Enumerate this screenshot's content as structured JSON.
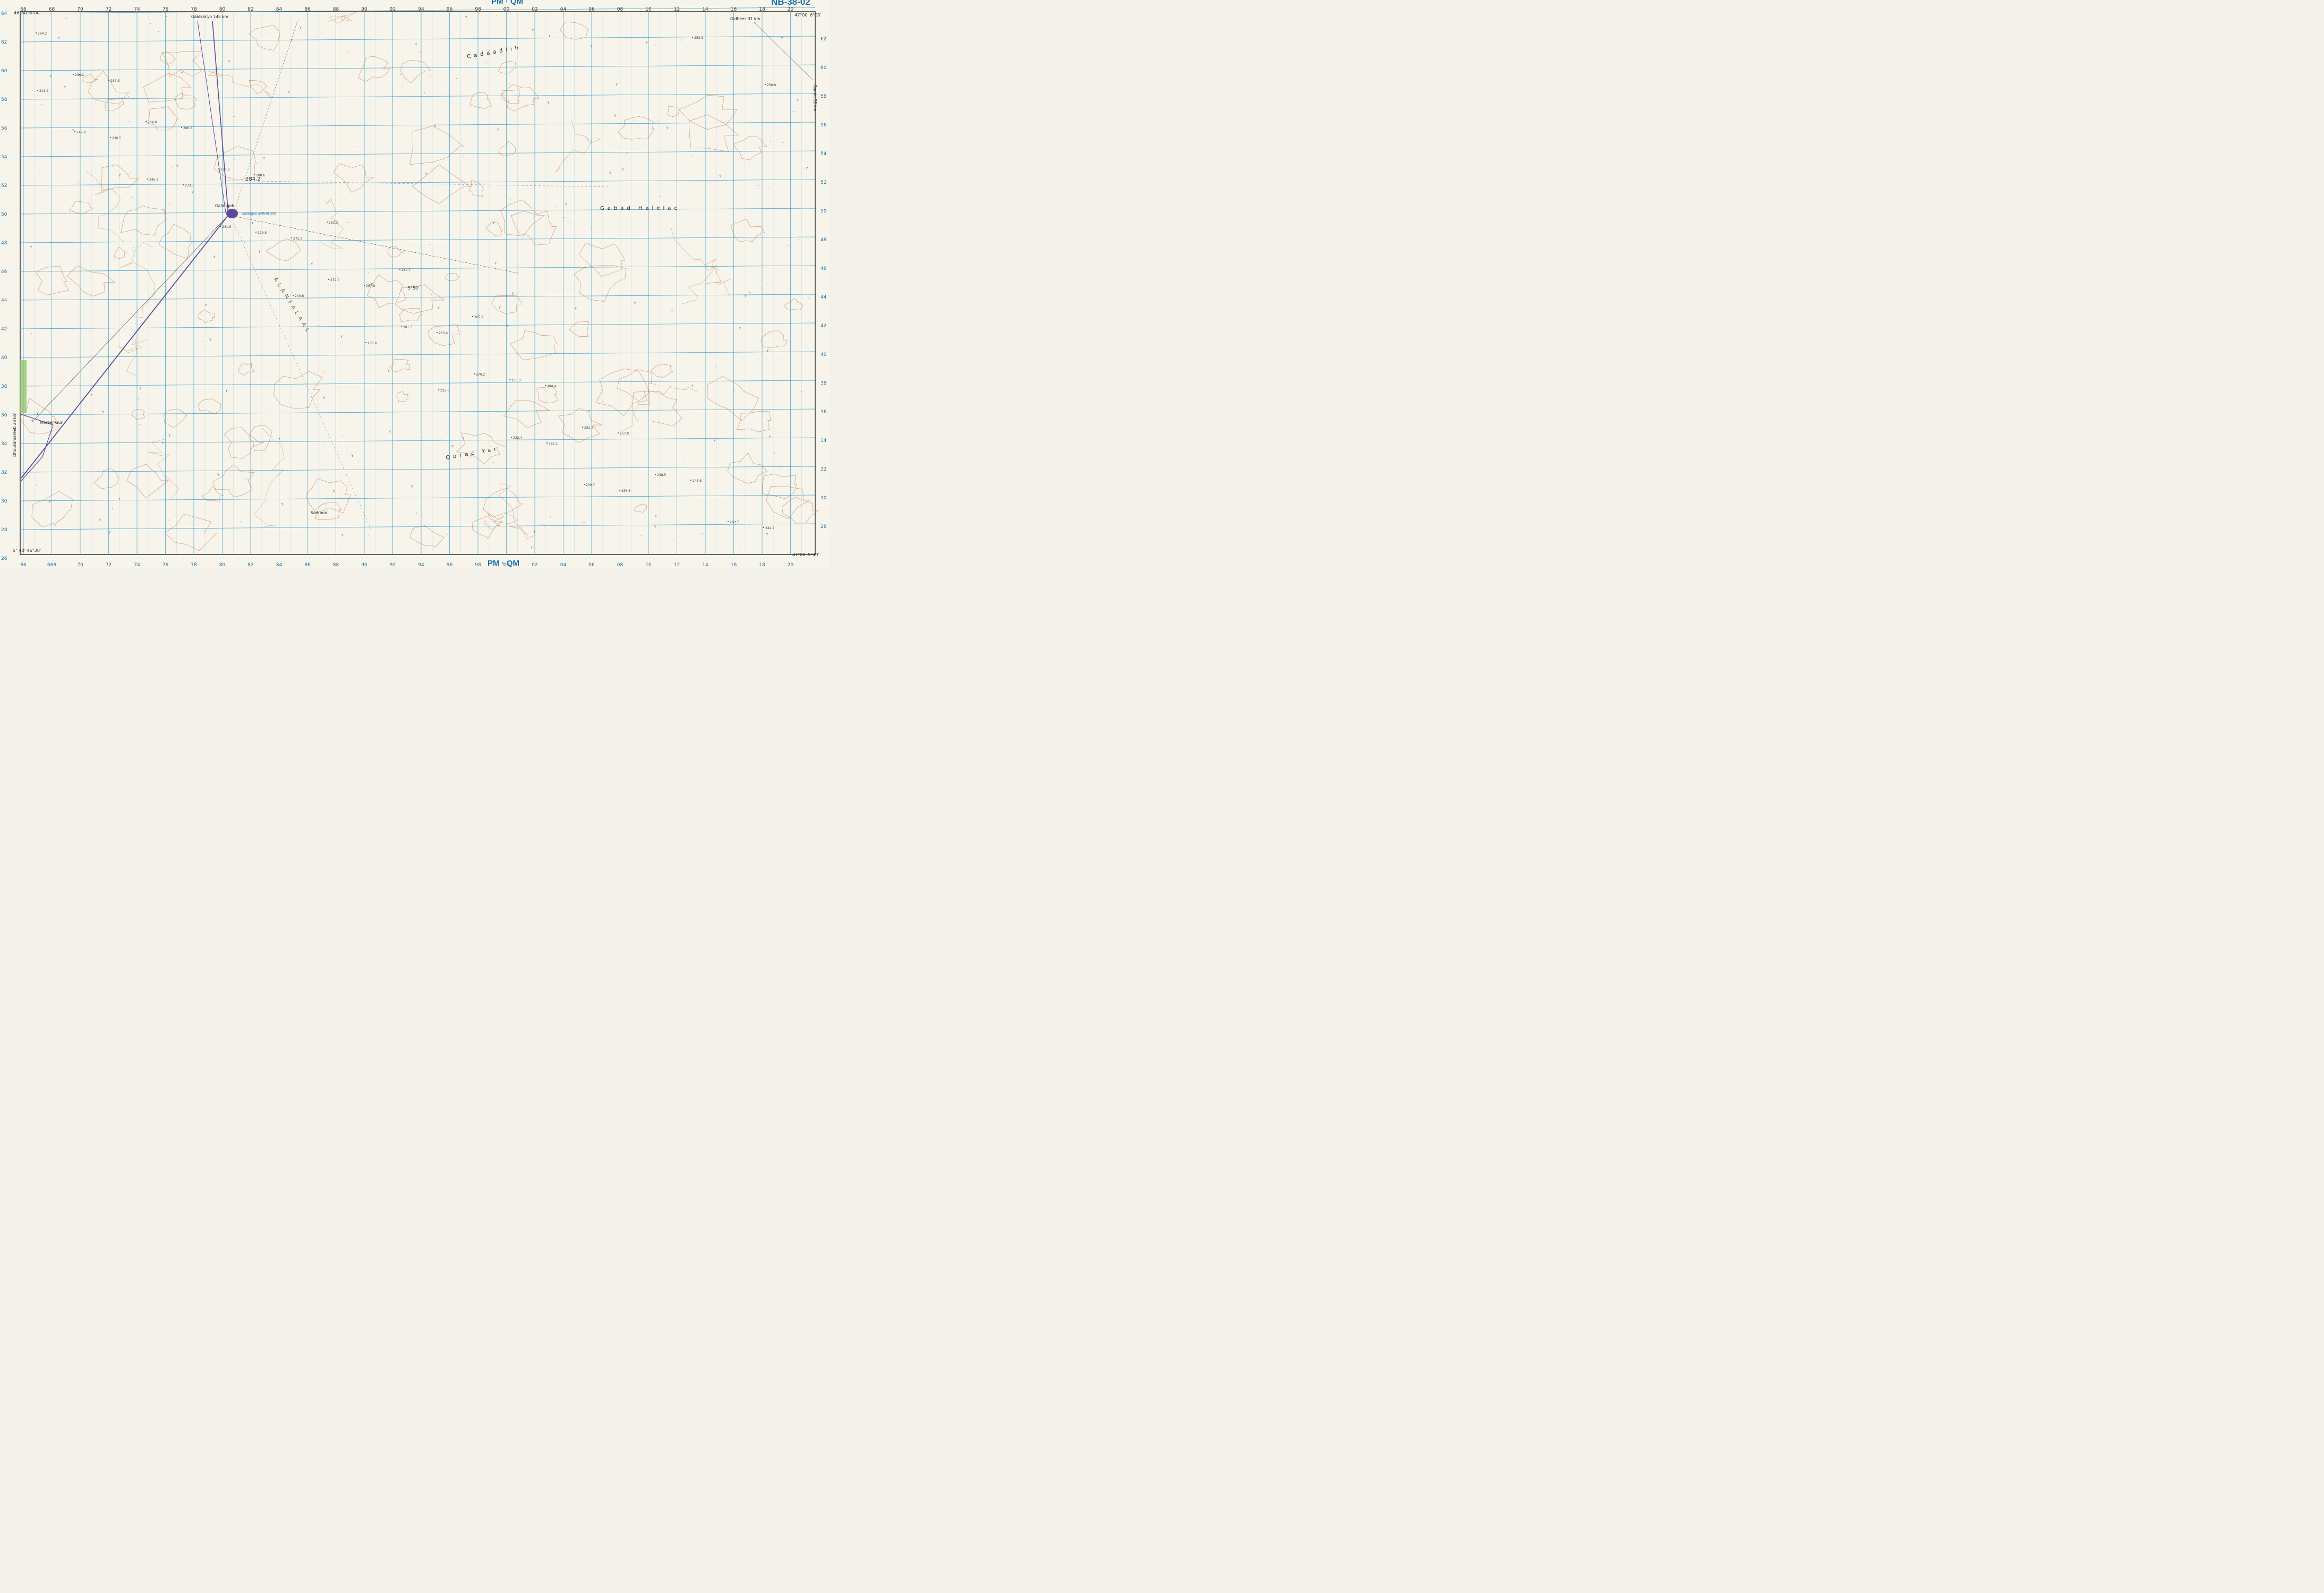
{
  "sheet": {
    "code": "NB-38-02",
    "zone_top": "PM · QM",
    "zone_bottom": "PM · QM"
  },
  "colors": {
    "paper": "#f7f4ec",
    "grid": "#3b9cc9",
    "contour": "#c98a55",
    "road": "#5a4a9a",
    "label_blue": "#1d6fa8",
    "text": "#333333",
    "vegetation": "#8fc46a"
  },
  "corners": {
    "top_left": "46°30' 6°00'",
    "top_right": "47°00' 6°00'",
    "bottom_left": "5° 40' 46°30'",
    "bottom_right": "47°00' 5°40'",
    "mid_bottom_left": "40'",
    "mid_top_left": "00'"
  },
  "grid": {
    "top_labels": [
      "66",
      "68",
      "70",
      "72",
      "74",
      "76",
      "78",
      "80",
      "82",
      "84",
      "86",
      "88",
      "90",
      "92",
      "94",
      "96",
      "98",
      "00",
      "02",
      "04",
      "06",
      "08",
      "10",
      "12",
      "14",
      "16",
      "18",
      "20",
      "22"
    ],
    "bottom_labels": [
      "66",
      "668",
      "70",
      "72",
      "74",
      "76",
      "78",
      "80",
      "82",
      "84",
      "86",
      "88",
      "90",
      "92",
      "94",
      "96",
      "98",
      "00",
      "02",
      "04",
      "06",
      "08",
      "10",
      "12",
      "14",
      "16",
      "18",
      "20",
      "22"
    ],
    "left_labels": [
      "64",
      "62",
      "60",
      "58",
      "56",
      "54",
      "52",
      "50",
      "48",
      "46",
      "44",
      "42",
      "40",
      "38",
      "36",
      "34",
      "32",
      "30",
      "28",
      "26"
    ],
    "right_labels": [
      "62",
      "60",
      "58",
      "56",
      "54",
      "52",
      "50",
      "48",
      "46",
      "44",
      "42",
      "40",
      "38",
      "36",
      "34",
      "32",
      "30",
      "28"
    ]
  },
  "places": [
    {
      "name": "Gaalkacyo 145 km"
    },
    {
      "name": "Gidhees 31 km"
    },
    {
      "name": "Galdogob"
    },
    {
      "name": "Mareer-Gur"
    },
    {
      "name": "Dhuusamareeb 28 km"
    },
    {
      "name": "Cadaadlih"
    },
    {
      "name": "Gabad Halelac"
    },
    {
      "name": "Sadroon"
    },
    {
      "name": "Bando 32 km"
    },
    {
      "name": "ALANFALAAL"
    },
    {
      "name": "Qurac Yar"
    }
  ],
  "elevations": [
    "284.2",
    "287.3",
    "286.8",
    "288.6",
    "282.3",
    "269.7",
    "265.2",
    "284.4",
    "257.9",
    "248.8",
    "244.2",
    "236.2",
    "284.8",
    "278.3",
    "272.2",
    "267.8",
    "263.4",
    "255.3",
    "252.7",
    "248.5",
    "243.7",
    "241.2",
    "236.5",
    "233.1",
    "276.5",
    "279.0",
    "281.3",
    "270.2",
    "262.1",
    "258.6",
    "253.5",
    "250.9",
    "247.9",
    "245.2",
    "241.6",
    "240.6",
    "238.9",
    "235.0",
    "232.4",
    "230.7"
  ],
  "annotations": {
    "airfield": "Galdogob airfield 300",
    "special": "5°50'",
    "well1": "Gabad Halelac",
    "center_label": "284.2"
  }
}
